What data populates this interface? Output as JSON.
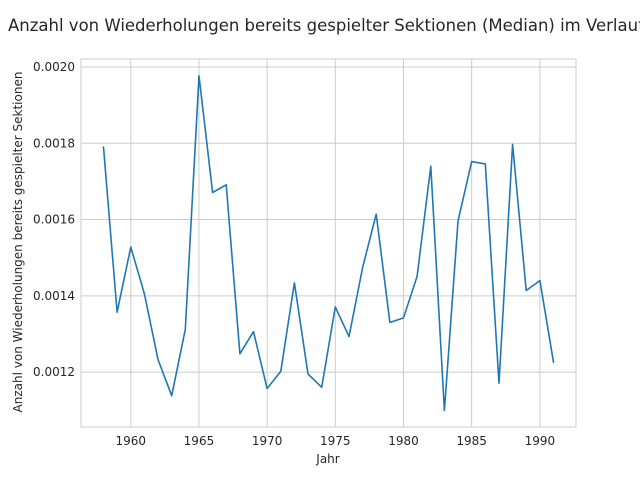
{
  "chart_data": {
    "type": "line",
    "title": "Anzahl von Wiederholungen bereits gespielter Sektionen (Median) im Verlauf der Zeit",
    "xlabel": "Jahr",
    "ylabel": "Anzahl von Wiederholungen bereits gespielter Sektionen",
    "xlim": [
      1956.35,
      1992.65
    ],
    "ylim": [
      0.001056,
      0.002021
    ],
    "xticks": [
      1960,
      1965,
      1970,
      1975,
      1980,
      1985,
      1990
    ],
    "yticks": [
      0.0012,
      0.0014,
      0.0016,
      0.0018,
      0.002
    ],
    "xtick_labels": [
      "1960",
      "1965",
      "1970",
      "1975",
      "1980",
      "1985",
      "1990"
    ],
    "ytick_labels": [
      "0.0012",
      "0.0014",
      "0.0016",
      "0.0018",
      "0.0020"
    ],
    "grid": true,
    "line_color": "#1f77b4",
    "series": [
      {
        "x": [
          1958,
          1959,
          1960,
          1961,
          1962,
          1963,
          1964,
          1965,
          1966,
          1967,
          1968,
          1969,
          1970,
          1971,
          1972,
          1973,
          1974,
          1975,
          1976,
          1977,
          1978,
          1979,
          1980,
          1981,
          1982,
          1983,
          1984,
          1985,
          1986,
          1987,
          1988,
          1989,
          1990,
          1991
        ],
        "y": [
          0.00179,
          0.001357,
          0.001528,
          0.001405,
          0.001233,
          0.001138,
          0.001312,
          0.001977,
          0.001671,
          0.001691,
          0.001248,
          0.001306,
          0.001157,
          0.001202,
          0.001434,
          0.001195,
          0.00116,
          0.001371,
          0.001293,
          0.001474,
          0.001614,
          0.00133,
          0.001342,
          0.001451,
          0.00174,
          0.001099,
          0.001596,
          0.001752,
          0.001746,
          0.001171,
          0.001797,
          0.001414,
          0.00144,
          0.001226
        ]
      }
    ]
  }
}
